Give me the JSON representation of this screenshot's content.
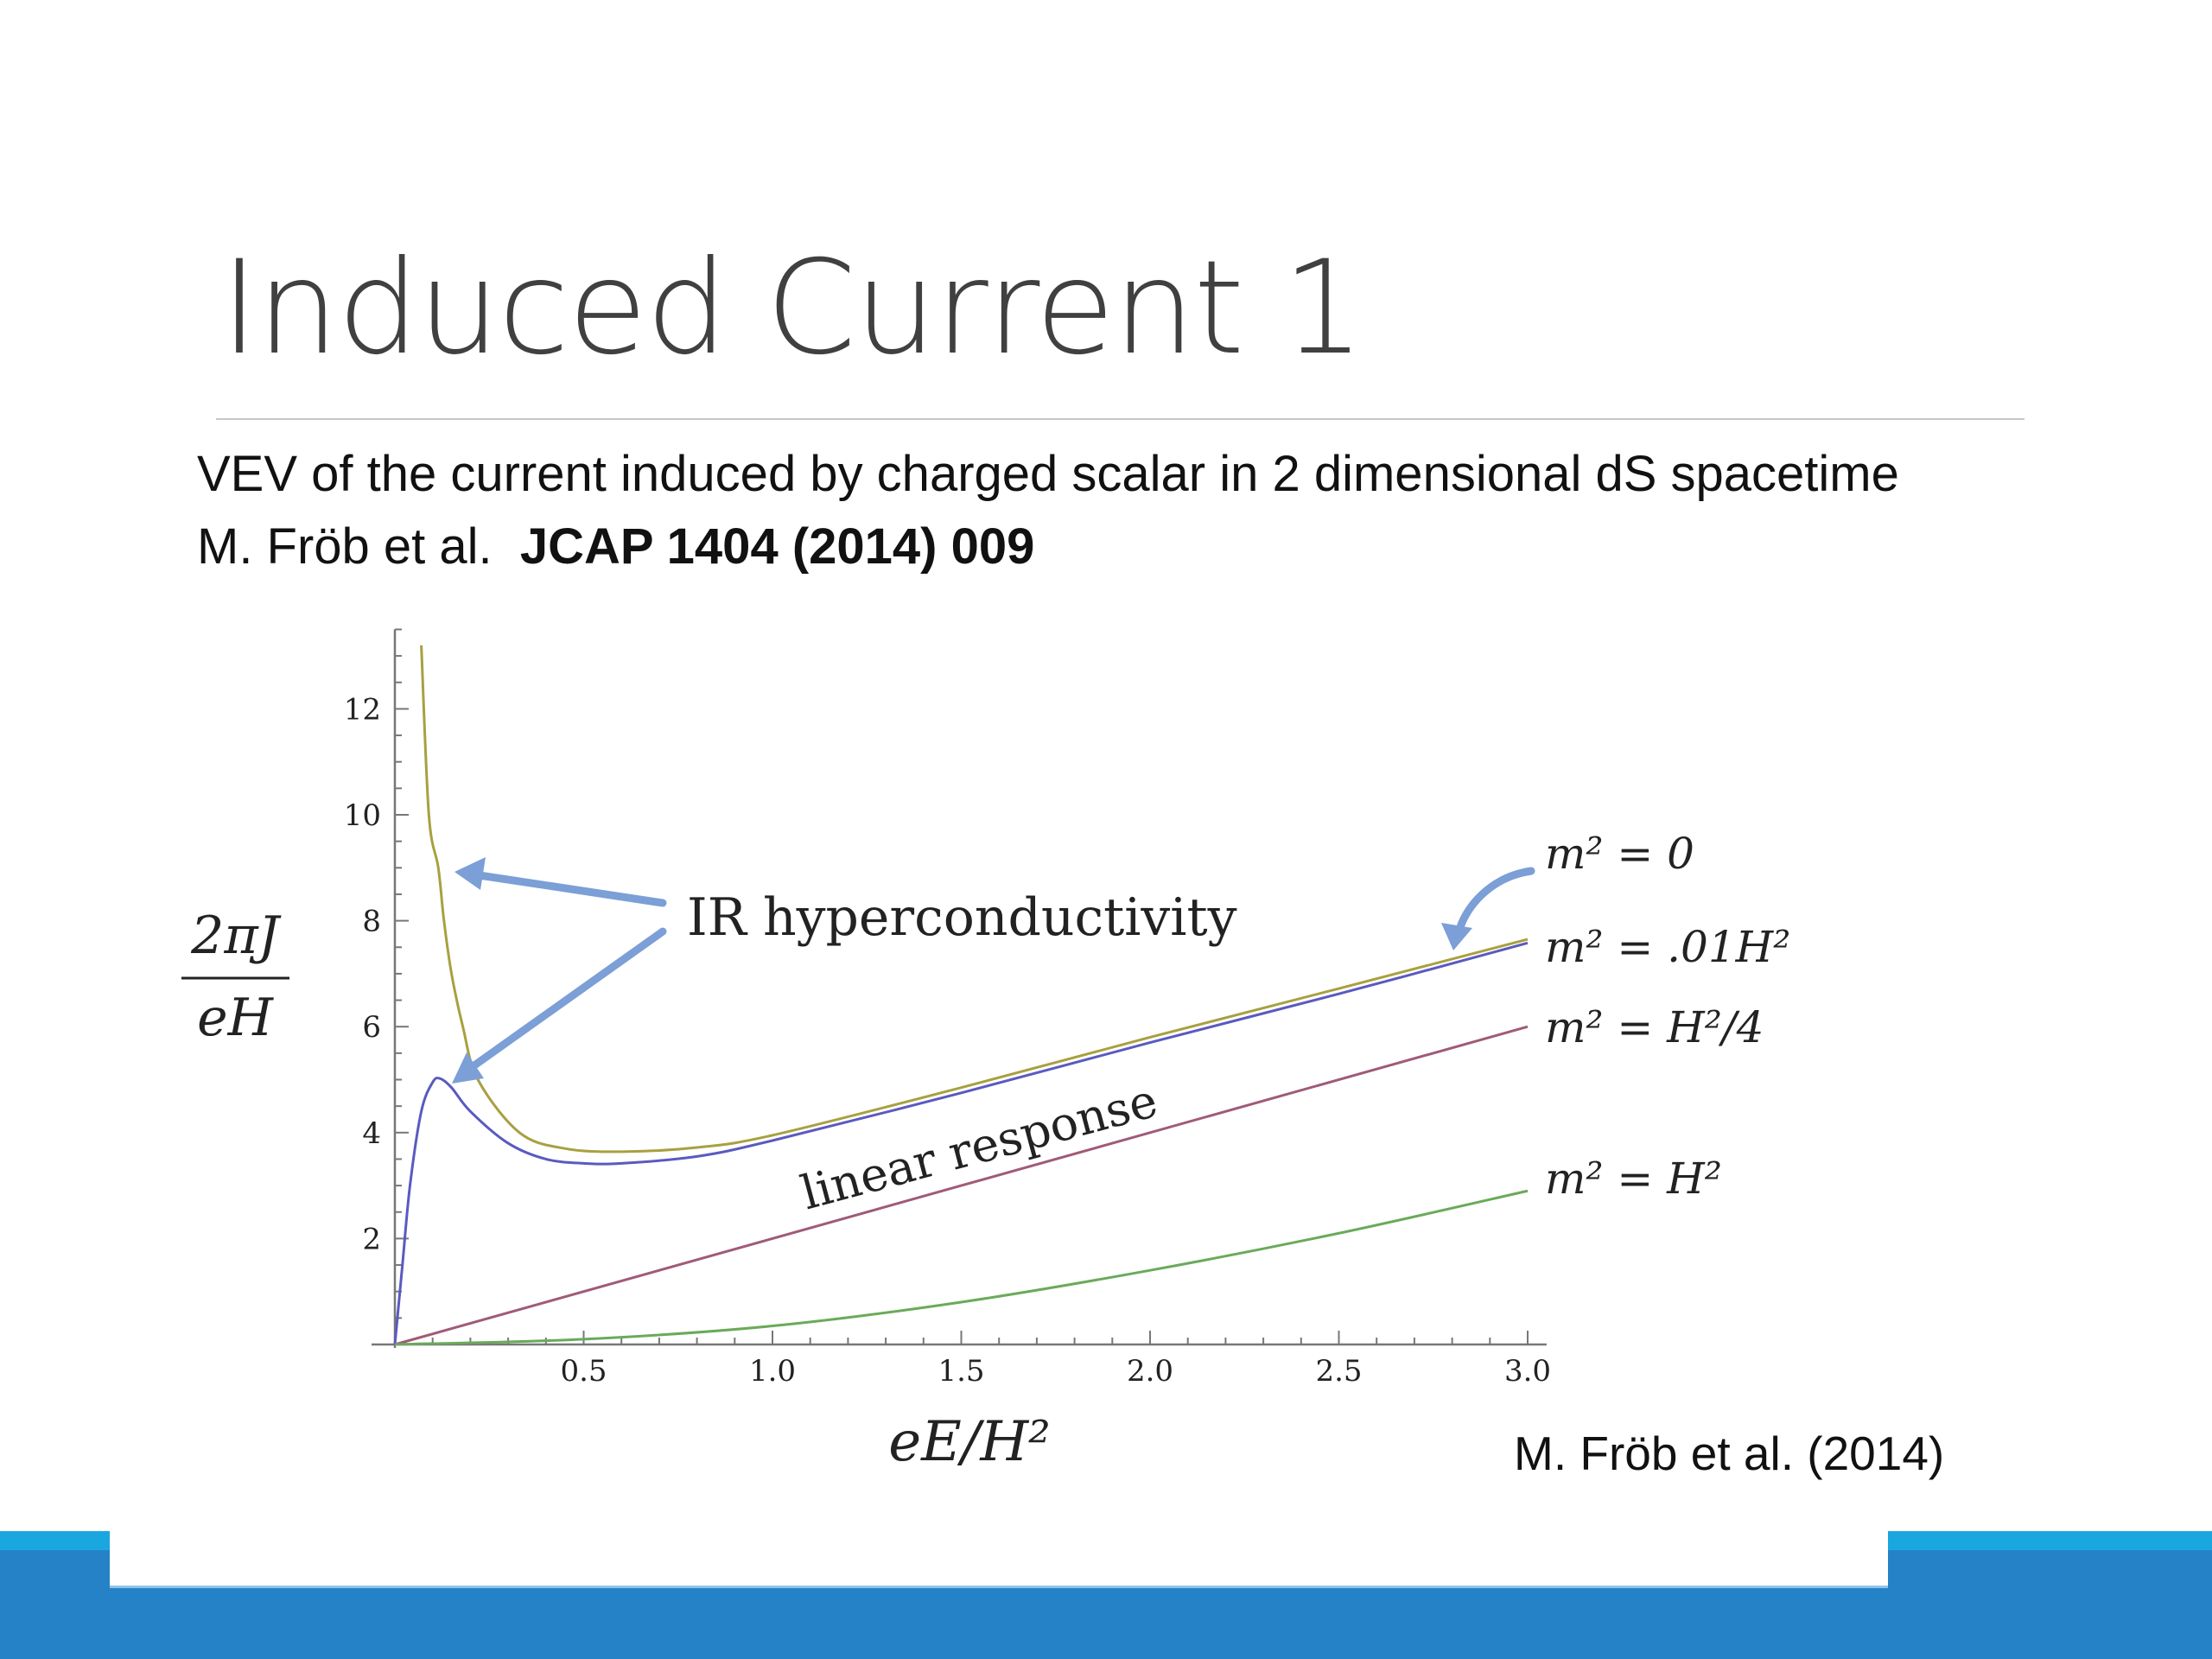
{
  "slide": {
    "title": "Induced Current 1",
    "line1": "VEV of the current induced by charged scalar in 2 dimensional dS spacetime",
    "line2_plain": "M. Fröb et al.",
    "line2_bold": "JCAP 1404 (2014) 009",
    "citation": "M. Fröb et al. (2014)"
  },
  "colors": {
    "bar_light": "#1aa7e0",
    "bar_dark": "#2682c6",
    "arrow": "#7b9fd6",
    "title": "#404040"
  },
  "chart_data": {
    "type": "line",
    "xlabel": "eE/H²",
    "ylabel_num": "2πJ",
    "ylabel_den": "eH",
    "xlim": [
      0,
      3.05
    ],
    "ylim": [
      0,
      13.5
    ],
    "x_ticks": [
      "0.5",
      "1.0",
      "1.5",
      "2.0",
      "2.5",
      "3.0"
    ],
    "y_ticks": [
      "2",
      "4",
      "6",
      "8",
      "10",
      "12"
    ],
    "grid": false,
    "annotations": {
      "ir": "IR hyperconductivity",
      "linear": "linear response"
    },
    "series": [
      {
        "name": "m² = 0",
        "color": "#a8a040",
        "points": [
          [
            0.07,
            13.2
          ],
          [
            0.09,
            10
          ],
          [
            0.115,
            9
          ],
          [
            0.13,
            8
          ],
          [
            0.15,
            7
          ],
          [
            0.18,
            6
          ],
          [
            0.22,
            5
          ],
          [
            0.33,
            4
          ],
          [
            0.45,
            3.7
          ],
          [
            0.6,
            3.64
          ],
          [
            0.8,
            3.72
          ],
          [
            1.0,
            3.95
          ],
          [
            1.5,
            4.85
          ],
          [
            2.0,
            5.8
          ],
          [
            2.5,
            6.72
          ],
          [
            3.0,
            7.65
          ]
        ]
      },
      {
        "name": "m² = .01H²",
        "color": "#5a5ac0",
        "points": [
          [
            0,
            0
          ],
          [
            0.02,
            1.5
          ],
          [
            0.04,
            3
          ],
          [
            0.07,
            4.4
          ],
          [
            0.1,
            4.95
          ],
          [
            0.12,
            5.02
          ],
          [
            0.15,
            4.85
          ],
          [
            0.2,
            4.4
          ],
          [
            0.3,
            3.8
          ],
          [
            0.4,
            3.5
          ],
          [
            0.5,
            3.42
          ],
          [
            0.6,
            3.42
          ],
          [
            0.8,
            3.55
          ],
          [
            1.0,
            3.85
          ],
          [
            1.5,
            4.75
          ],
          [
            2.0,
            5.7
          ],
          [
            2.5,
            6.62
          ],
          [
            3.0,
            7.58
          ]
        ]
      },
      {
        "name": "m² = H²/4",
        "color": "#a05a78",
        "points": [
          [
            0,
            0
          ],
          [
            3.0,
            6.0
          ]
        ]
      },
      {
        "name": "m² = H²",
        "color": "#6aaa5a",
        "points": [
          [
            0,
            0
          ],
          [
            0.5,
            0.1
          ],
          [
            1.0,
            0.35
          ],
          [
            1.5,
            0.8
          ],
          [
            2.0,
            1.4
          ],
          [
            2.5,
            2.1
          ],
          [
            3.0,
            2.9
          ]
        ]
      }
    ]
  }
}
